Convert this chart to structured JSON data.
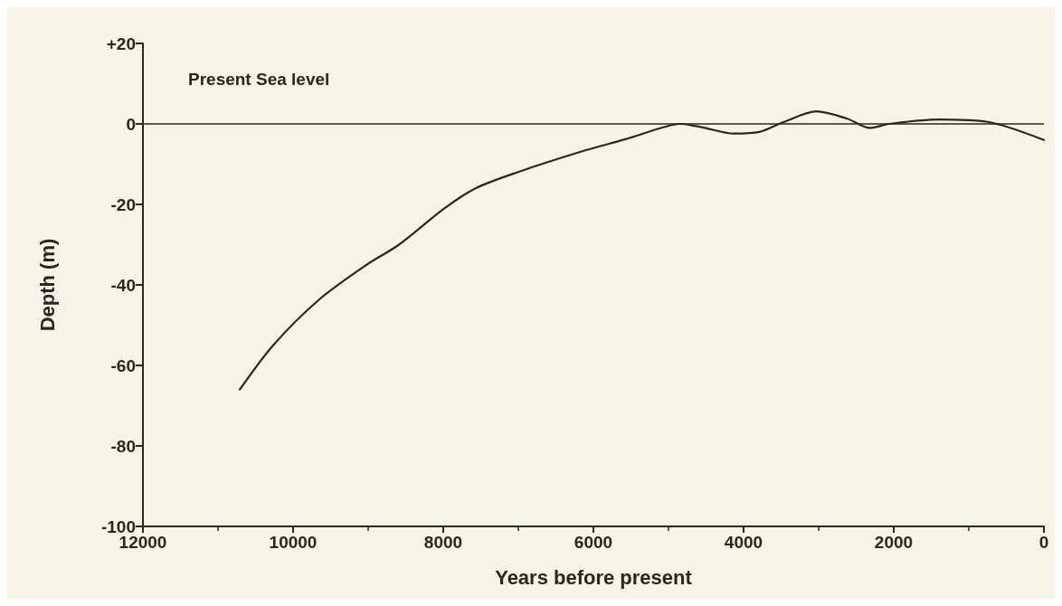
{
  "chart_data": {
    "type": "line",
    "xlabel": "Years before present",
    "ylabel": "Depth (m)",
    "x": [
      10710,
      10265,
      9650,
      9020,
      8590,
      7985,
      7570,
      6995,
      6130,
      5575,
      5060,
      4850,
      4560,
      4130,
      3790,
      3460,
      3030,
      2620,
      2320,
      2060,
      1400,
      750,
      0
    ],
    "series": [
      {
        "color": "#2b2622",
        "values": [
          -66,
          -55,
          -43.6,
          -35,
          -30,
          -21,
          -16,
          -11.9,
          -6.7,
          -3.8,
          -0.8,
          0,
          -0.8,
          -2.4,
          -2,
          0.5,
          3.1,
          1.3,
          -1,
          0,
          1.1,
          0.5,
          -4
        ]
      }
    ],
    "xlim": [
      12000,
      0
    ],
    "xticks": [
      12000,
      10000,
      8000,
      6000,
      4000,
      2000,
      0
    ],
    "ylim": [
      -100,
      20
    ],
    "yticks": [
      {
        "value": 20,
        "label": "+20"
      },
      0,
      -20,
      -40,
      -60,
      -80,
      -100
    ],
    "ref_lines": [
      {
        "axis": "y",
        "value": 0,
        "label": "Present Sea level",
        "color": "#2b2622"
      }
    ],
    "grid": false,
    "marker": "none",
    "line_style": "solid"
  }
}
